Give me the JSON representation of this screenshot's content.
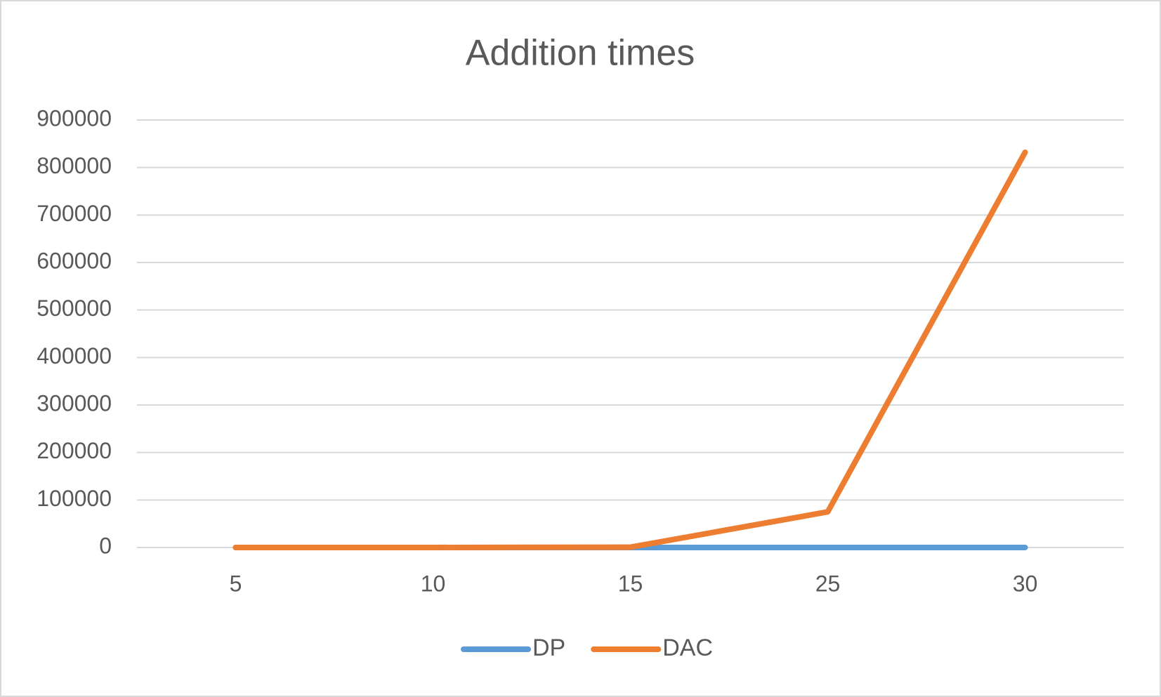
{
  "chart_data": {
    "type": "line",
    "title": "Addition times",
    "categories": [
      "5",
      "10",
      "15",
      "25",
      "30"
    ],
    "series": [
      {
        "name": "DP",
        "color": "#5b9bd5",
        "values": [
          4,
          9,
          14,
          24,
          29
        ]
      },
      {
        "name": "DAC",
        "color": "#ed7d31",
        "values": [
          5,
          55,
          610,
          75025,
          832040
        ]
      }
    ],
    "ylim": [
      0,
      900000
    ],
    "yticks": [
      0,
      100000,
      200000,
      300000,
      400000,
      500000,
      600000,
      700000,
      800000,
      900000
    ],
    "grid": true,
    "legend": "bottom"
  }
}
